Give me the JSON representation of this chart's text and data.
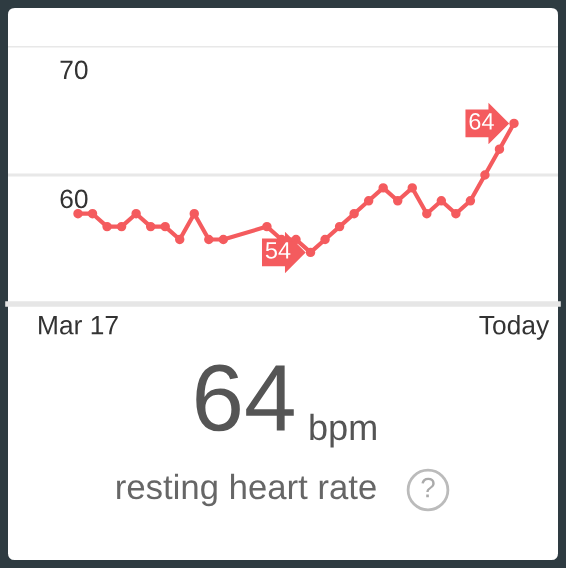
{
  "chart_data": {
    "type": "line",
    "categories": [
      "Mar 17",
      null,
      null,
      null,
      null,
      null,
      null,
      null,
      null,
      null,
      null,
      null,
      null,
      null,
      null,
      null,
      null,
      null,
      null,
      null,
      null,
      null,
      null,
      null,
      null,
      null,
      null,
      null,
      null,
      null,
      "Today"
    ],
    "series": [
      {
        "color": "#f45b5e",
        "values": [
          57,
          57,
          56,
          56,
          57,
          56,
          56,
          55,
          57,
          55,
          55,
          null,
          null,
          56,
          55,
          55,
          54,
          55,
          56,
          57,
          58,
          59,
          58,
          59,
          57,
          58,
          57,
          58,
          60,
          62,
          64
        ],
        "value_labels": [
          null,
          null,
          null,
          null,
          null,
          null,
          null,
          null,
          null,
          null,
          null,
          null,
          null,
          null,
          null,
          null,
          "54",
          null,
          null,
          null,
          null,
          null,
          null,
          null,
          null,
          null,
          null,
          null,
          null,
          null,
          "64"
        ]
      }
    ],
    "ylim": [
      50,
      70
    ],
    "yticks": [
      60,
      70
    ],
    "grid": "y",
    "marker": "circle",
    "line_style": "solid",
    "annotations": [
      "64",
      "bpm",
      "resting heart rate",
      "?"
    ]
  }
}
